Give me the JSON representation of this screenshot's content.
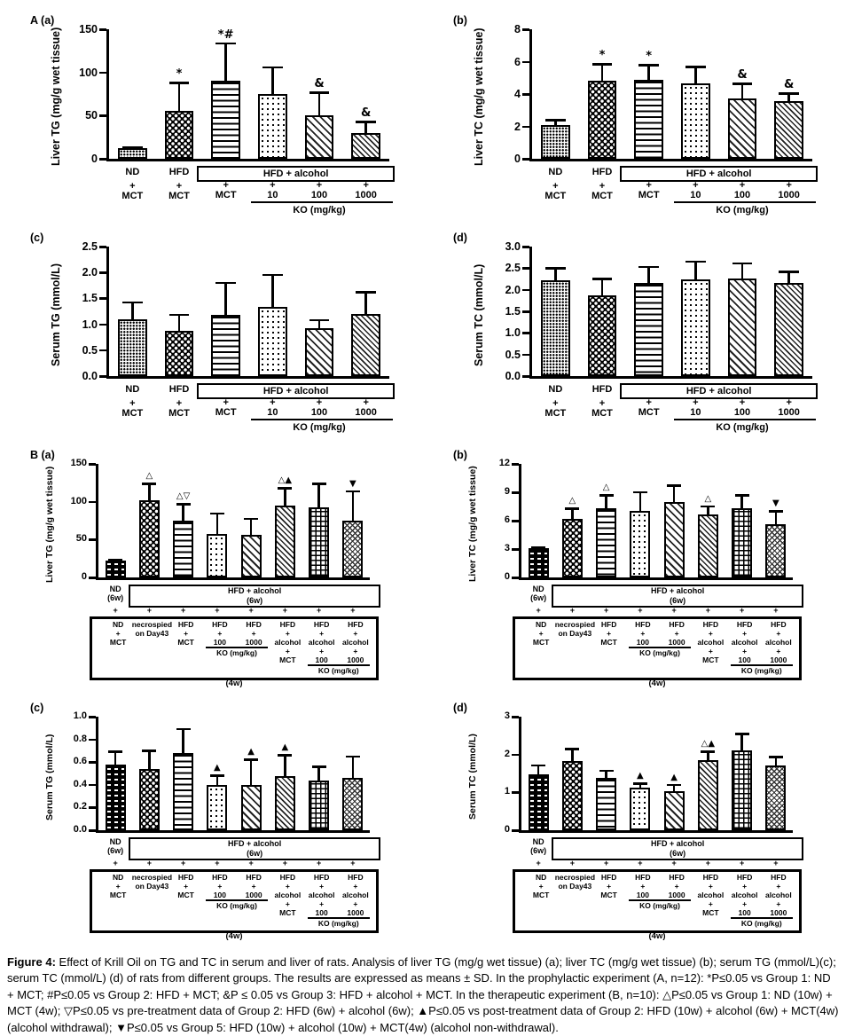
{
  "colors": {
    "ink": "#000000",
    "paper": "#ffffff"
  },
  "figure": {
    "caption_label": "Figure 4:",
    "caption_text": " Effect of Krill Oil on TG and TC in serum and liver of rats. Analysis of liver TG (mg/g wet tissue) (a); liver TC (mg/g wet tissue) (b); serum TG (mmol/L)(c); serum TC (mmol/L) (d) of rats from different groups. The results are expressed as means ± SD. In the prophylactic experiment (A, n=12): *P≤0.05 vs Group 1: ND + MCT; #P≤0.05 vs Group 2: HFD + MCT; &P ≤ 0.05 vs Group 3: HFD + alcohol + MCT. In the therapeutic experiment (B, n=10): △P≤0.05 vs Group 1: ND (10w) + MCT (4w); ▽P≤0.05 vs pre-treatment data of Group 2: HFD (6w) + alcohol (6w); ▲P≤0.05 vs post-treatment data of Group 2: HFD (10w) + alcohol (6w) + MCT(4w) (alcohol withdrawal); ▼P≤0.05 vs Group 5: HFD (10w) + alcohol (10w) + MCT(4w) (alcohol non-withdrawal)."
  },
  "footer_A": {
    "left_groups": [
      [
        "ND",
        "+",
        "MCT"
      ],
      [
        "HFD",
        "+",
        "MCT"
      ]
    ],
    "box_label": "HFD + alcohol",
    "box_cols": [
      [
        "+",
        "MCT"
      ],
      [
        "+",
        "10"
      ],
      [
        "+",
        "100"
      ],
      [
        "+",
        "1000"
      ]
    ],
    "ko_label": "KO (mg/kg)"
  },
  "footer_B": {
    "first_col": [
      "ND",
      "(6w)"
    ],
    "box_label": [
      "HFD + alcohol",
      "(6w)"
    ],
    "plus": "+",
    "cols": [
      [
        "ND",
        "+",
        "MCT"
      ],
      [
        "necrospied",
        "on Day43"
      ],
      [
        "HFD",
        "+",
        "MCT"
      ],
      [
        "HFD",
        "+",
        "100"
      ],
      [
        "HFD",
        "+",
        "1000"
      ],
      [
        "HFD",
        "+",
        "alcohol",
        "+",
        "MCT"
      ],
      [
        "HFD",
        "+",
        "alcohol",
        "+",
        "100"
      ],
      [
        "HFD",
        "+",
        "alcohol",
        "+",
        "1000"
      ]
    ],
    "ko_label": "KO (mg/kg)",
    "duration_label": "(4w)"
  },
  "chart_data": [
    {
      "id": "A-a",
      "panel_label": "A (a)",
      "type": "bar",
      "ylabel": "Liver TG (mg/g wet tissue)",
      "ylim": [
        0,
        150
      ],
      "yticks": [
        "0",
        "50",
        "100",
        "150"
      ],
      "categories": [
        "ND + MCT",
        "HFD + MCT",
        "HFD + alcohol + MCT",
        "HFD + alcohol + KO 10 mg/kg",
        "HFD + alcohol + KO 100 mg/kg",
        "HFD + alcohol + KO 1000 mg/kg"
      ],
      "values": [
        12,
        55,
        90,
        75,
        50,
        30
      ],
      "errors_plus": [
        2,
        34,
        45,
        32,
        28,
        14
      ],
      "sig_marks": [
        "",
        "*",
        "*#",
        "",
        "&",
        "&"
      ],
      "patterns": [
        "dots-fine",
        "checker",
        "hlines",
        "dots-sparse",
        "diag",
        "diag-fine"
      ],
      "footer_type": "A"
    },
    {
      "id": "A-b",
      "panel_label": "(b)",
      "type": "bar",
      "ylabel": "Liver TC (mg/g wet tissue)",
      "ylim": [
        0,
        8
      ],
      "yticks": [
        "0",
        "2",
        "4",
        "6",
        "8"
      ],
      "categories": [
        "ND + MCT",
        "HFD + MCT",
        "HFD + alcohol + MCT",
        "HFD + alcohol + KO 10 mg/kg",
        "HFD + alcohol + KO 100 mg/kg",
        "HFD + alcohol + KO 1000 mg/kg"
      ],
      "values": [
        2.1,
        4.8,
        4.9,
        4.65,
        3.75,
        3.55
      ],
      "errors_plus": [
        0.35,
        1.1,
        0.95,
        1.1,
        0.95,
        0.55
      ],
      "sig_marks": [
        "",
        "*",
        "*",
        "",
        "&",
        "&"
      ],
      "patterns": [
        "dots-fine",
        "checker",
        "hlines",
        "dots-sparse",
        "diag",
        "diag-fine"
      ],
      "footer_type": "A"
    },
    {
      "id": "A-c",
      "panel_label": "(c)",
      "type": "bar",
      "ylabel": "Serum TG (mmol/L)",
      "ylim": [
        0,
        2.5
      ],
      "yticks": [
        "0.0",
        "0.5",
        "1.0",
        "1.5",
        "2.0",
        "2.5"
      ],
      "categories": [
        "ND + MCT",
        "HFD + MCT",
        "HFD + alcohol + MCT",
        "HFD + alcohol + KO 10 mg/kg",
        "HFD + alcohol + KO 100 mg/kg",
        "HFD + alcohol + KO 1000 mg/kg"
      ],
      "values": [
        1.1,
        0.87,
        1.18,
        1.34,
        0.93,
        1.2
      ],
      "errors_plus": [
        0.34,
        0.33,
        0.64,
        0.63,
        0.17,
        0.44
      ],
      "sig_marks": [
        "",
        "",
        "",
        "",
        "",
        ""
      ],
      "patterns": [
        "dots-fine",
        "checker",
        "hlines",
        "dots-sparse",
        "diag",
        "diag-fine"
      ],
      "footer_type": "A"
    },
    {
      "id": "A-d",
      "panel_label": "(d)",
      "type": "bar",
      "ylabel": "Serum TC (mmol/L)",
      "ylim": [
        0,
        3.0
      ],
      "yticks": [
        "0.0",
        "0.5",
        "1.0",
        "1.5",
        "2.0",
        "2.5",
        "3.0"
      ],
      "categories": [
        "ND + MCT",
        "HFD + MCT",
        "HFD + alcohol + MCT",
        "HFD + alcohol + KO 10 mg/kg",
        "HFD + alcohol + KO 100 mg/kg",
        "HFD + alcohol + KO 1000 mg/kg"
      ],
      "values": [
        2.22,
        1.88,
        2.15,
        2.24,
        2.26,
        2.15
      ],
      "errors_plus": [
        0.3,
        0.4,
        0.4,
        0.44,
        0.38,
        0.29
      ],
      "sig_marks": [
        "",
        "",
        "",
        "",
        "",
        ""
      ],
      "patterns": [
        "dots-fine",
        "checker",
        "hlines",
        "dots-sparse",
        "diag",
        "diag-fine"
      ],
      "footer_type": "A"
    },
    {
      "id": "B-a",
      "panel_label": "B (a)",
      "type": "bar",
      "ylabel": "Liver TG (mg/g wet tissue)",
      "ylim": [
        0,
        150
      ],
      "yticks": [
        "0",
        "50",
        "100",
        "150"
      ],
      "categories": [
        "ND (6w) + MCT",
        "HFD + alcohol (6w), necrospied on Day43",
        "HFD + alcohol (6w) + MCT (4w)",
        "HFD + alcohol (6w) + KO 100 mg/kg (4w)",
        "HFD + alcohol (6w) + KO 1000 mg/kg (4w)",
        "HFD + alcohol (6w) + alcohol + MCT (4w)",
        "HFD + alcohol (6w) + alcohol + KO 100 (4w)",
        "HFD + alcohol (6w) + alcohol + KO 1000 (4w)"
      ],
      "values": [
        22,
        102,
        75,
        57,
        56,
        95,
        93,
        75
      ],
      "errors_plus": [
        3,
        23,
        23,
        29,
        23,
        24,
        32,
        40
      ],
      "sig_marks": [
        "",
        "△",
        "△▽",
        "",
        "",
        "△▲",
        "",
        "▼"
      ],
      "patterns": [
        "dash-rows",
        "checker",
        "hlines",
        "dots-sparse",
        "diag",
        "diag-fine",
        "grid",
        "diag-cross"
      ],
      "footer_type": "B"
    },
    {
      "id": "B-b",
      "panel_label": "(b)",
      "type": "bar",
      "ylabel": "Liver TC (mg/g wet tissue)",
      "ylim": [
        0,
        12
      ],
      "yticks": [
        "0",
        "3",
        "6",
        "9",
        "12"
      ],
      "categories": [
        "ND (6w) + MCT",
        "HFD + alcohol (6w), necrospied on Day43",
        "HFD + alcohol (6w) + MCT (4w)",
        "HFD + alcohol (6w) + KO 100 mg/kg (4w)",
        "HFD + alcohol (6w) + KO 1000 mg/kg (4w)",
        "HFD + alcohol (6w) + alcohol + MCT (4w)",
        "HFD + alcohol (6w) + alcohol + KO 100 (4w)",
        "HFD + alcohol (6w) + alcohol + KO 1000 (4w)"
      ],
      "values": [
        3.1,
        6.2,
        7.3,
        7.0,
        8.0,
        6.7,
        7.3,
        5.6
      ],
      "errors_plus": [
        0.2,
        1.2,
        1.5,
        2.1,
        1.8,
        0.9,
        1.5,
        1.5
      ],
      "sig_marks": [
        "",
        "△",
        "△",
        "",
        "",
        "△",
        "",
        "▼"
      ],
      "patterns": [
        "dash-rows",
        "checker",
        "hlines",
        "dots-sparse",
        "diag",
        "diag-fine",
        "grid",
        "diag-cross"
      ],
      "footer_type": "B"
    },
    {
      "id": "B-c",
      "panel_label": "(c)",
      "type": "bar",
      "ylabel": "Serum TG (mmol/L)",
      "ylim": [
        0,
        1.0
      ],
      "yticks": [
        "0.0",
        "0.2",
        "0.4",
        "0.6",
        "0.8",
        "1.0"
      ],
      "categories": [
        "ND (6w) + MCT",
        "HFD + alcohol (6w), necrospied on Day43",
        "HFD + alcohol (6w) + MCT (4w)",
        "HFD + alcohol (6w) + KO 100 mg/kg (4w)",
        "HFD + alcohol (6w) + KO 1000 mg/kg (4w)",
        "HFD + alcohol (6w) + alcohol + MCT (4w)",
        "HFD + alcohol (6w) + alcohol + KO 100 (4w)",
        "HFD + alcohol (6w) + alcohol + KO 1000 (4w)"
      ],
      "values": [
        0.58,
        0.54,
        0.68,
        0.4,
        0.4,
        0.48,
        0.44,
        0.46
      ],
      "errors_plus": [
        0.12,
        0.17,
        0.22,
        0.09,
        0.23,
        0.19,
        0.13,
        0.2
      ],
      "sig_marks": [
        "",
        "",
        "",
        "▲",
        "▲",
        "▲",
        "",
        ""
      ],
      "patterns": [
        "dash-rows",
        "checker",
        "hlines",
        "dots-sparse",
        "diag",
        "diag-fine",
        "grid",
        "diag-cross"
      ],
      "footer_type": "B"
    },
    {
      "id": "B-d",
      "panel_label": "(d)",
      "type": "bar",
      "ylabel": "Serum TC (mmol/L)",
      "ylim": [
        0,
        3
      ],
      "yticks": [
        "0",
        "1",
        "2",
        "3"
      ],
      "categories": [
        "ND (6w) + MCT",
        "HFD + alcohol (6w), necrospied on Day43",
        "HFD + alcohol (6w) + MCT (4w)",
        "HFD + alcohol (6w) + KO 100 mg/kg (4w)",
        "HFD + alcohol (6w) + KO 1000 mg/kg (4w)",
        "HFD + alcohol (6w) + alcohol + MCT (4w)",
        "HFD + alcohol (6w) + alcohol + KO 100 (4w)",
        "HFD + alcohol (6w) + alcohol + KO 1000 (4w)"
      ],
      "values": [
        1.48,
        1.84,
        1.39,
        1.12,
        1.03,
        1.86,
        2.1,
        1.7
      ],
      "errors_plus": [
        0.26,
        0.34,
        0.21,
        0.14,
        0.2,
        0.24,
        0.47,
        0.26
      ],
      "sig_marks": [
        "",
        "",
        "",
        "▲",
        "▲",
        "△▲",
        "",
        ""
      ],
      "patterns": [
        "dash-rows",
        "checker",
        "hlines",
        "dots-sparse",
        "diag",
        "diag-fine",
        "grid",
        "diag-cross"
      ],
      "footer_type": "B"
    }
  ]
}
